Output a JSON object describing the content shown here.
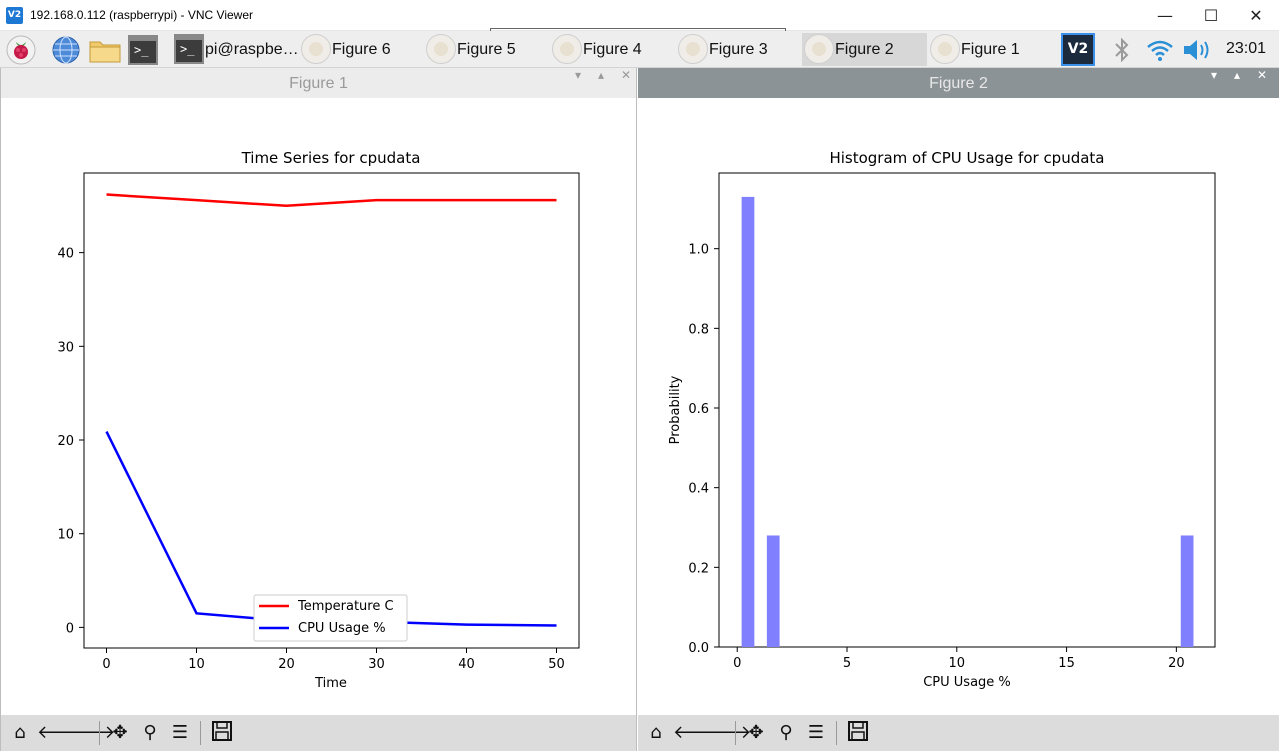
{
  "vnc": {
    "logo_text": "V2",
    "title": "192.168.0.112 (raspberrypi) - VNC Viewer",
    "minimize": "—",
    "maximize": "☐",
    "close": "✕"
  },
  "taskbar": {
    "terminal_label": "pi@raspbe…",
    "terminal_glyph": ">_",
    "tasks": [
      {
        "label": "Figure 6"
      },
      {
        "label": "Figure 5"
      },
      {
        "label": "Figure 4"
      },
      {
        "label": "Figure 3"
      },
      {
        "label": "Figure 2",
        "active": true
      },
      {
        "label": "Figure 1"
      }
    ],
    "tray_vnc": "V2",
    "clock": "23:01"
  },
  "figure1": {
    "window_title": "Figure 1",
    "chart_data": {
      "type": "line",
      "title": "Time Series for cpudata",
      "xlabel": "Time",
      "ylabel": "",
      "x": [
        0,
        10,
        20,
        30,
        40,
        50
      ],
      "xlim": [
        -2.5,
        52.5
      ],
      "ylim": [
        -2.2,
        48.5
      ],
      "xticks": [
        0,
        10,
        20,
        30,
        40,
        50
      ],
      "yticks": [
        0,
        10,
        20,
        30,
        40
      ],
      "legend_position": "lower-center",
      "series": [
        {
          "name": "Temperature C",
          "color": "#ff0000",
          "values": [
            46.2,
            45.6,
            45.0,
            45.6,
            45.6,
            45.6
          ]
        },
        {
          "name": "CPU Usage %",
          "color": "#0000ff",
          "values": [
            20.9,
            1.5,
            0.7,
            0.6,
            0.3,
            0.2
          ]
        }
      ]
    }
  },
  "figure2": {
    "window_title": "Figure 2",
    "chart_data": {
      "type": "bar",
      "title": "Histogram of CPU Usage for cpudata",
      "xlabel": "CPU Usage %",
      "ylabel": "Probability",
      "xlim": [
        -0.83,
        21.76
      ],
      "ylim": [
        0,
        1.19
      ],
      "xticks": [
        0,
        5,
        10,
        15,
        20
      ],
      "yticks": [
        0.0,
        0.2,
        0.4,
        0.6,
        0.8,
        1.0
      ],
      "bar_color": "#8080ff",
      "bin_width": 0.58,
      "bins": [
        {
          "x": 0.2,
          "value": 1.13
        },
        {
          "x": 1.35,
          "value": 0.28
        },
        {
          "x": 20.2,
          "value": 0.28
        }
      ]
    }
  },
  "toolbar_icons": [
    "home-icon",
    "back-icon",
    "forward-icon",
    "pan-icon",
    "zoom-icon",
    "configure-icon",
    "save-icon"
  ]
}
